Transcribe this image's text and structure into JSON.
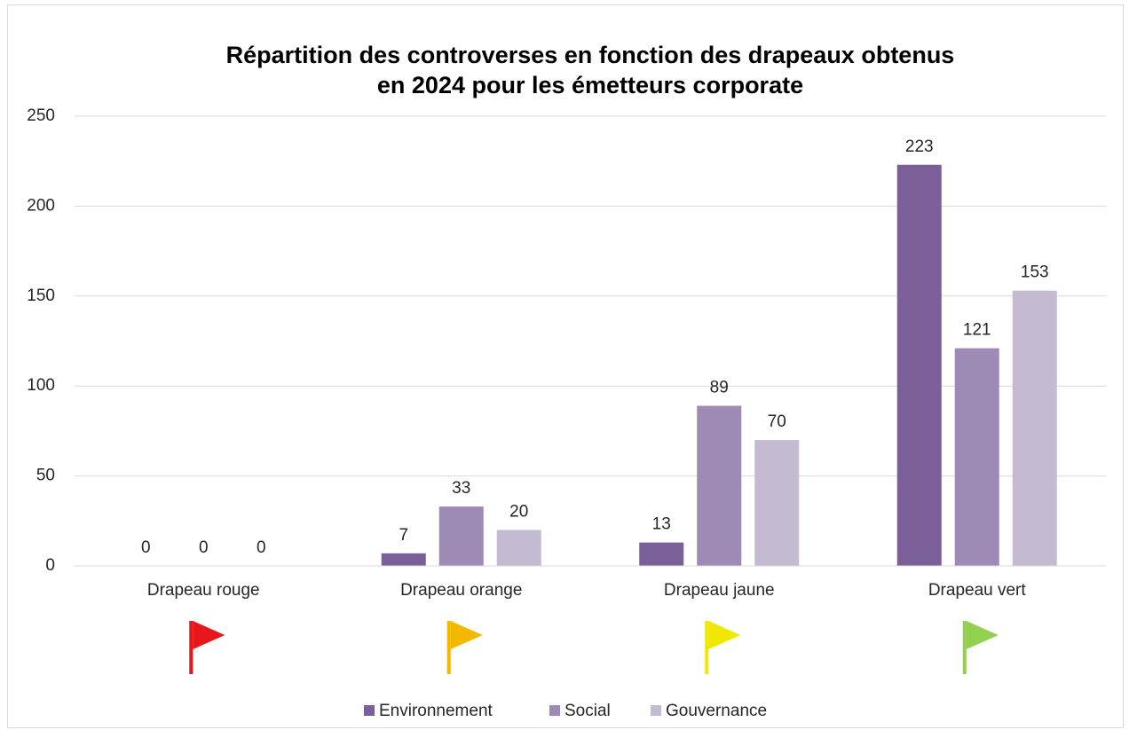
{
  "chart_data": {
    "type": "bar",
    "title": [
      "Répartition des controverses en fonction des drapeaux obtenus",
      "en 2024 pour les émetteurs corporate"
    ],
    "categories": [
      "Drapeau rouge",
      "Drapeau orange",
      "Drapeau jaune",
      "Drapeau vert"
    ],
    "series": [
      {
        "name": "Environnement",
        "color": "#7a5f99",
        "values": [
          0,
          7,
          13,
          223
        ]
      },
      {
        "name": "Social",
        "color": "#9d8ab5",
        "values": [
          0,
          33,
          89,
          121
        ]
      },
      {
        "name": "Gouvernance",
        "color": "#c4bbd3",
        "values": [
          0,
          20,
          70,
          153
        ]
      }
    ],
    "ylim": [
      0,
      250
    ],
    "yticks": [
      0,
      50,
      100,
      150,
      200,
      250
    ],
    "grid": true,
    "legend": "bottom"
  }
}
